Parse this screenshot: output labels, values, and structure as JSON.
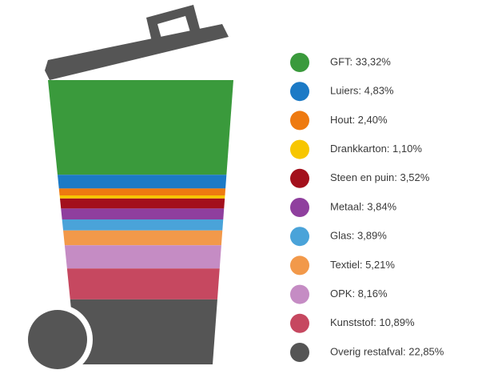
{
  "chart_data": {
    "type": "bin",
    "labels": [
      "GFT: 33,32%",
      "Luiers: 4,83%",
      "Hout: 2,40%",
      "Drankkarton: 1,10%",
      "Steen en puin: 3,52%",
      "Metaal: 3,84%",
      "Glas: 3,89%",
      "Textiel: 5,21%",
      "OPK: 8,16%",
      "Kunststof: 10,89%",
      "Overig restafval: 22,85%"
    ],
    "values": [
      33.32,
      4.83,
      2.4,
      1.1,
      3.52,
      3.84,
      3.89,
      5.21,
      8.16,
      10.89,
      22.85
    ],
    "colors": [
      "#3a9a3c",
      "#1c7ac6",
      "#ee7a10",
      "#f7c600",
      "#a3101c",
      "#8f3f9e",
      "#4aa3d9",
      "#f2994a",
      "#c58cc4",
      "#c64860",
      "#555555"
    ]
  }
}
